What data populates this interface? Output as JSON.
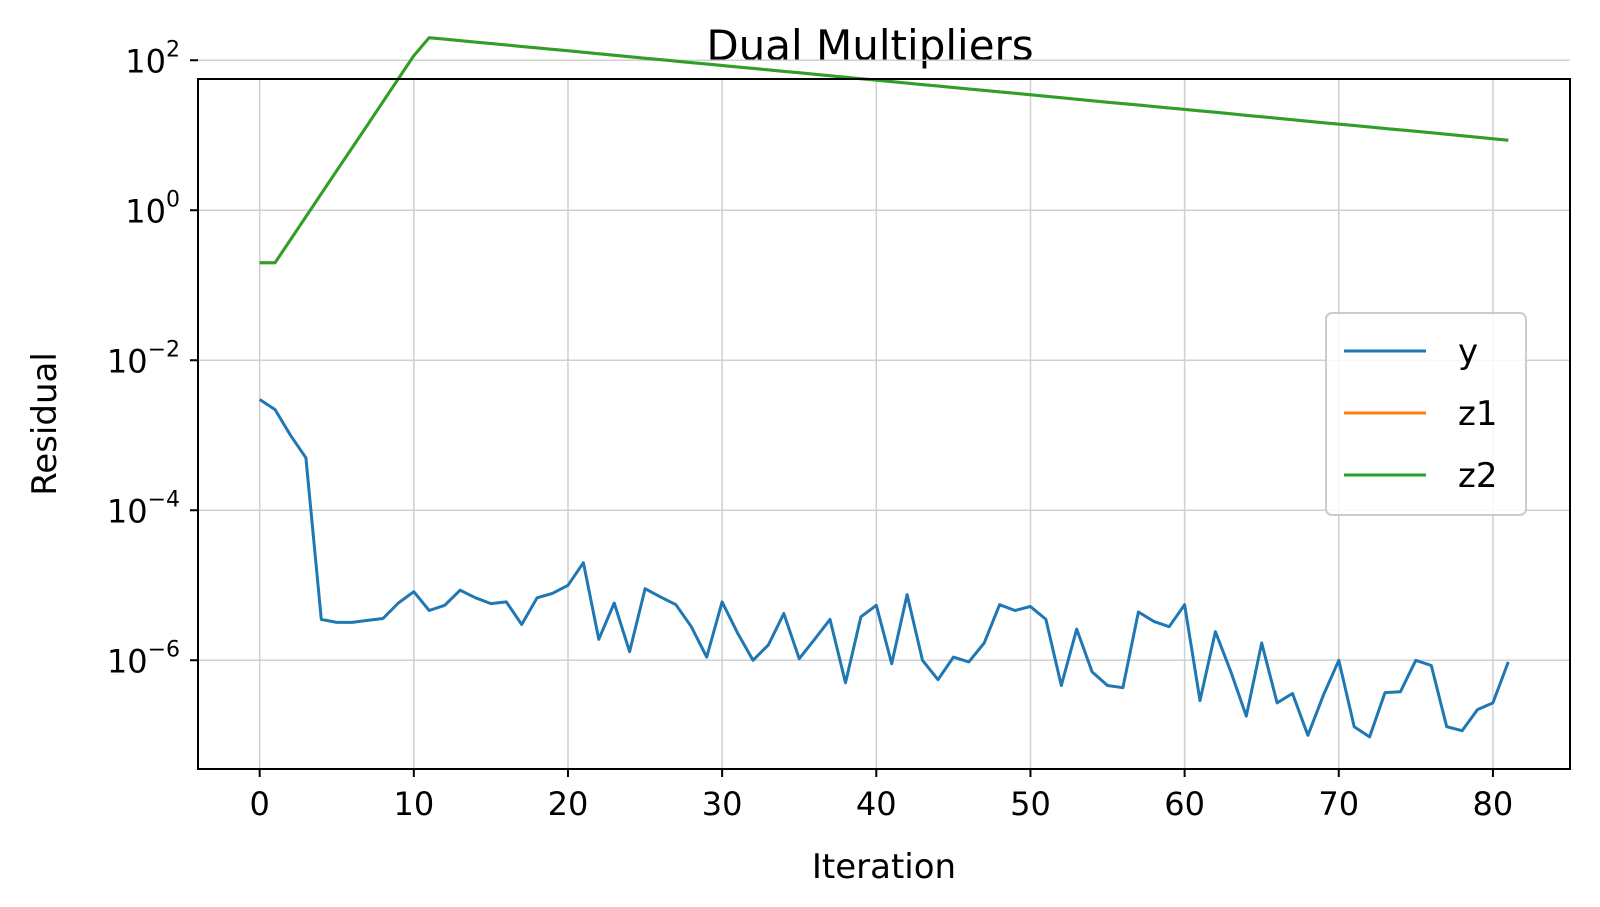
{
  "chart_data": {
    "type": "line",
    "title": "Dual Multipliers",
    "xlabel": "Iteration",
    "ylabel": "Residual",
    "yscale": "log",
    "xlim": [
      -4,
      85
    ],
    "ylim_exp": [
      -7.45,
      1.75
    ],
    "xticks": [
      0,
      10,
      20,
      30,
      40,
      50,
      60,
      70,
      80
    ],
    "yticks": [
      {
        "base": "10",
        "exp": "2",
        "value": 100
      },
      {
        "base": "10",
        "exp": "0",
        "value": 1
      },
      {
        "base": "10",
        "exp": "−2",
        "value": 0.01
      },
      {
        "base": "10",
        "exp": "−4",
        "value": 0.0001
      },
      {
        "base": "10",
        "exp": "−6",
        "value": 1e-06
      }
    ],
    "grid": true,
    "legend_position": "center-right",
    "series": [
      {
        "name": "y",
        "color": "#1f77b4",
        "values": [
          0.003,
          0.0022,
          0.001,
          0.0005,
          3.5e-06,
          3.2e-06,
          3.2e-06,
          3.4e-06,
          3.6e-06,
          5.8e-06,
          8.2e-06,
          4.6e-06,
          5.4e-06,
          8.6e-06,
          6.8e-06,
          5.7e-06,
          6e-06,
          3e-06,
          6.8e-06,
          7.8e-06,
          1e-05,
          2e-05,
          1.9e-06,
          5.8e-06,
          1.3e-06,
          9e-06,
          7e-06,
          5.5e-06,
          2.8e-06,
          1.1e-06,
          6e-06,
          2.3e-06,
          1e-06,
          1.6e-06,
          4.2e-06,
          1.05e-06,
          1.9e-06,
          3.5e-06,
          5e-07,
          3.8e-06,
          5.4e-06,
          9e-07,
          7.5e-06,
          1e-06,
          5.5e-07,
          1.1e-06,
          9.5e-07,
          1.7e-06,
          5.5e-06,
          4.6e-06,
          5.2e-06,
          3.5e-06,
          4.6e-07,
          2.6e-06,
          7e-07,
          4.6e-07,
          4.3e-07,
          4.4e-06,
          3.3e-06,
          2.8e-06,
          5.5e-06,
          2.9e-07,
          2.4e-06,
          7e-07,
          1.8e-07,
          1.7e-06,
          2.7e-07,
          3.6e-07,
          1e-07,
          3.4e-07,
          1e-06,
          1.3e-07,
          9.5e-08,
          3.7e-07,
          3.8e-07,
          1e-06,
          8.5e-07,
          1.3e-07,
          1.15e-07,
          2.2e-07,
          2.7e-07,
          9.5e-07
        ]
      },
      {
        "name": "z1",
        "color": "#ff7f0e",
        "values": [
          0.2,
          0.2,
          0.405,
          0.82,
          1.66,
          3.37,
          6.82,
          13.8,
          28.0,
          56.7,
          115,
          200,
          191.2,
          182.8,
          174.8,
          167.1,
          159.7,
          152.7,
          146.0,
          139.6,
          133.5,
          127.6,
          122.0,
          116.6,
          111.5,
          106.6,
          101.9,
          97.4,
          93.1,
          89.0,
          85.1,
          81.4,
          77.8,
          74.4,
          71.1,
          68.0,
          65.0,
          62.1,
          59.4,
          56.8,
          54.3,
          51.9,
          49.6,
          47.4,
          45.3,
          43.3,
          41.4,
          39.6,
          37.9,
          36.2,
          34.6,
          33.1,
          31.6,
          30.2,
          28.9,
          27.6,
          26.4,
          25.3,
          24.2,
          23.1,
          22.1,
          21.1,
          20.2,
          19.3,
          18.4,
          17.6,
          16.9,
          16.1,
          15.4,
          14.7,
          14.1,
          13.5,
          12.9,
          12.3,
          11.8,
          11.3,
          10.8,
          10.3,
          9.85,
          9.42,
          9.0,
          8.6
        ]
      },
      {
        "name": "z2",
        "color": "#2ca02c",
        "values": [
          0.2,
          0.2,
          0.405,
          0.82,
          1.66,
          3.37,
          6.82,
          13.8,
          28.0,
          56.7,
          115,
          200,
          191.2,
          182.8,
          174.8,
          167.1,
          159.7,
          152.7,
          146.0,
          139.6,
          133.5,
          127.6,
          122.0,
          116.6,
          111.5,
          106.6,
          101.9,
          97.4,
          93.1,
          89.0,
          85.1,
          81.4,
          77.8,
          74.4,
          71.1,
          68.0,
          65.0,
          62.1,
          59.4,
          56.8,
          54.3,
          51.9,
          49.6,
          47.4,
          45.3,
          43.3,
          41.4,
          39.6,
          37.9,
          36.2,
          34.6,
          33.1,
          31.6,
          30.2,
          28.9,
          27.6,
          26.4,
          25.3,
          24.2,
          23.1,
          22.1,
          21.1,
          20.2,
          19.3,
          18.4,
          17.6,
          16.9,
          16.1,
          15.4,
          14.7,
          14.1,
          13.5,
          12.9,
          12.3,
          11.8,
          11.3,
          10.8,
          10.3,
          9.85,
          9.42,
          9.0,
          8.6
        ]
      }
    ]
  }
}
